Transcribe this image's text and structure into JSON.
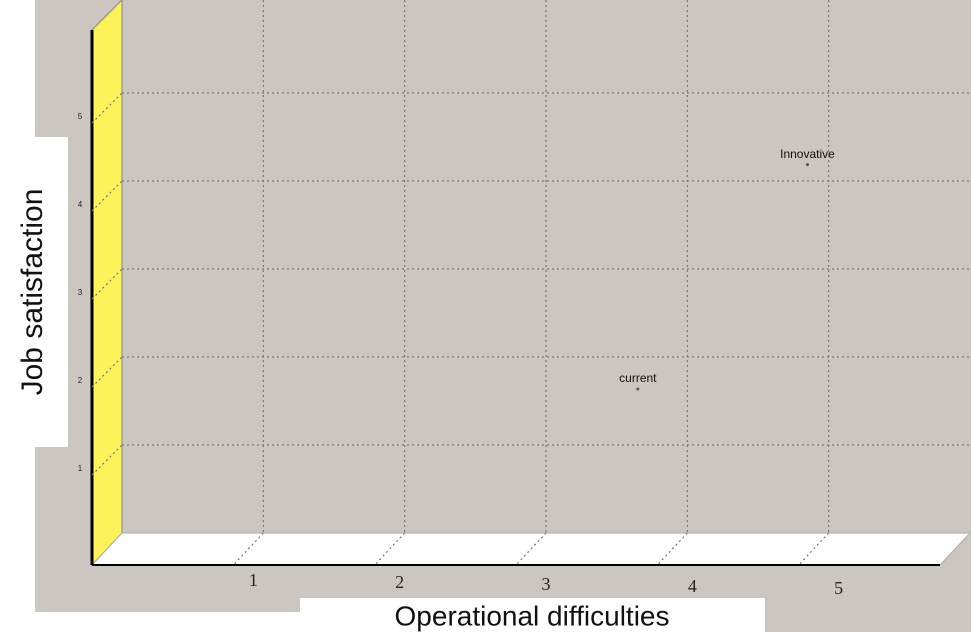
{
  "chart_data": {
    "type": "scatter",
    "xlabel": "Operational difficulties",
    "ylabel": "Job satisfaction",
    "x": [
      4.85,
      3.65
    ],
    "y": [
      4.3,
      1.75
    ],
    "point_labels": [
      "Innovative",
      "current"
    ],
    "xlim": [
      0,
      6
    ],
    "ylim": [
      0,
      6
    ],
    "xticks": [
      1,
      2,
      3,
      4,
      5
    ],
    "yticks": [
      1,
      2,
      3,
      4,
      5
    ],
    "grid": true,
    "color": "#555555"
  }
}
